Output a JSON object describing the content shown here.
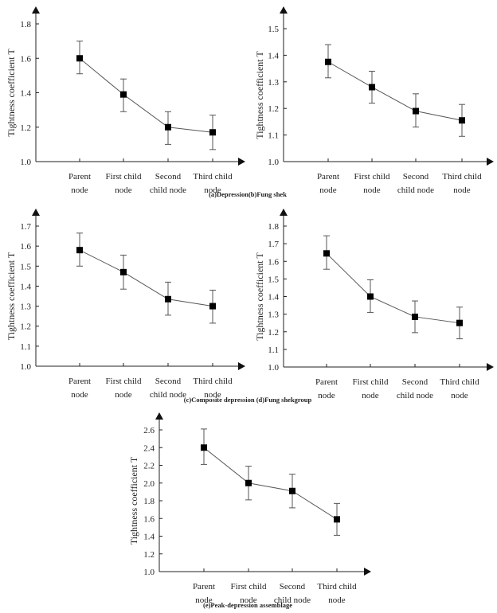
{
  "captions": [
    "(a)Depression(b)Fung shek",
    "(c)Composite depression (d)Fung shekgroup",
    "(e)Peak-depression assemblage"
  ],
  "chart_data": [
    {
      "id": "a",
      "type": "line",
      "title": "",
      "panel": "(a)Depression",
      "xlabel": "",
      "ylabel": "Tightness coefficient T",
      "categories": [
        "Parent node",
        "First child node",
        "Second child node",
        "Third child node"
      ],
      "category_lines": [
        [
          "Parent",
          "node"
        ],
        [
          "First child",
          "node"
        ],
        [
          "Second",
          "child node"
        ],
        [
          "Third child",
          "node"
        ]
      ],
      "yticks": [
        "1.0",
        "1.2",
        "1.4",
        "1.6",
        "1.8"
      ],
      "ylim": [
        1.0,
        1.8
      ],
      "grid": false,
      "series": [
        {
          "name": "Tightness coefficient",
          "values": [
            1.6,
            1.39,
            1.2,
            1.17
          ],
          "err_low": [
            1.51,
            1.29,
            1.1,
            1.07
          ],
          "err_high": [
            1.7,
            1.48,
            1.29,
            1.27
          ]
        }
      ]
    },
    {
      "id": "b",
      "type": "line",
      "title": "",
      "panel": "(b)Fung shek",
      "xlabel": "",
      "ylabel": "Tightness coefficient T",
      "categories": [
        "Parent node",
        "First child node",
        "Second child node",
        "Third child node"
      ],
      "category_lines": [
        [
          "Parent",
          "node"
        ],
        [
          "First child",
          "node"
        ],
        [
          "Second",
          "child node"
        ],
        [
          "Third child",
          "node"
        ]
      ],
      "yticks": [
        "1.0",
        "1.1",
        "1.2",
        "1.3",
        "1.4",
        "1.5"
      ],
      "ylim": [
        1.0,
        1.5
      ],
      "grid": false,
      "series": [
        {
          "name": "Tightness coefficient",
          "values": [
            1.375,
            1.28,
            1.19,
            1.155
          ],
          "err_low": [
            1.315,
            1.22,
            1.13,
            1.095
          ],
          "err_high": [
            1.44,
            1.34,
            1.255,
            1.215
          ]
        }
      ]
    },
    {
      "id": "c",
      "type": "line",
      "title": "",
      "panel": "(c)Composite depression",
      "xlabel": "",
      "ylabel": "Tightness coefficient T",
      "categories": [
        "Parent node",
        "First child node",
        "Second child node",
        "Third child node"
      ],
      "category_lines": [
        [
          "Parent",
          "node"
        ],
        [
          "First child",
          "node"
        ],
        [
          "Second",
          "child node"
        ],
        [
          "Third child",
          "node"
        ]
      ],
      "yticks": [
        "1.0",
        "1.1",
        "1.2",
        "1.3",
        "1.4",
        "1.5",
        "1.6",
        "1.7"
      ],
      "ylim": [
        1.0,
        1.7
      ],
      "grid": false,
      "series": [
        {
          "name": "Tightness coefficient",
          "values": [
            1.58,
            1.47,
            1.335,
            1.3
          ],
          "err_low": [
            1.5,
            1.385,
            1.255,
            1.215
          ],
          "err_high": [
            1.665,
            1.555,
            1.42,
            1.38
          ]
        }
      ]
    },
    {
      "id": "d",
      "type": "line",
      "title": "",
      "panel": "(d)Fung shekgroup",
      "xlabel": "",
      "ylabel": "Tightness coefficient T",
      "categories": [
        "Parent node",
        "First child node",
        "Second child node",
        "Third child node"
      ],
      "category_lines": [
        [
          "Parent",
          "node"
        ],
        [
          "First child",
          "node"
        ],
        [
          "Second",
          "child node"
        ],
        [
          "Third child",
          "node"
        ]
      ],
      "yticks": [
        "1.0",
        "1.1",
        "1.2",
        "1.3",
        "1.4",
        "1.5",
        "1.6",
        "1.7",
        "1.8"
      ],
      "ylim": [
        1.0,
        1.8
      ],
      "grid": false,
      "series": [
        {
          "name": "Tightness coefficient",
          "values": [
            1.645,
            1.4,
            1.285,
            1.25
          ],
          "err_low": [
            1.555,
            1.31,
            1.195,
            1.16
          ],
          "err_high": [
            1.745,
            1.495,
            1.375,
            1.34
          ]
        }
      ]
    },
    {
      "id": "e",
      "type": "line",
      "title": "",
      "panel": "(e)Peak-depression assemblage",
      "xlabel": "",
      "ylabel": "Tightness coefficient T",
      "categories": [
        "Parent node",
        "First child node",
        "Second child node",
        "Third child node"
      ],
      "category_lines": [
        [
          "Parent",
          "node"
        ],
        [
          "First child",
          "node"
        ],
        [
          "Second",
          "child node"
        ],
        [
          "Third child",
          "node"
        ]
      ],
      "yticks": [
        "1.0",
        "1.2",
        "1.4",
        "1.6",
        "1.8",
        "2.0",
        "2.2",
        "2.4",
        "2.6"
      ],
      "ylim": [
        1.0,
        2.6
      ],
      "grid": false,
      "series": [
        {
          "name": "Tightness coefficient",
          "values": [
            2.4,
            2.0,
            1.91,
            1.59
          ],
          "err_low": [
            2.21,
            1.81,
            1.72,
            1.41
          ],
          "err_high": [
            2.61,
            2.19,
            2.1,
            1.77
          ]
        }
      ]
    }
  ]
}
